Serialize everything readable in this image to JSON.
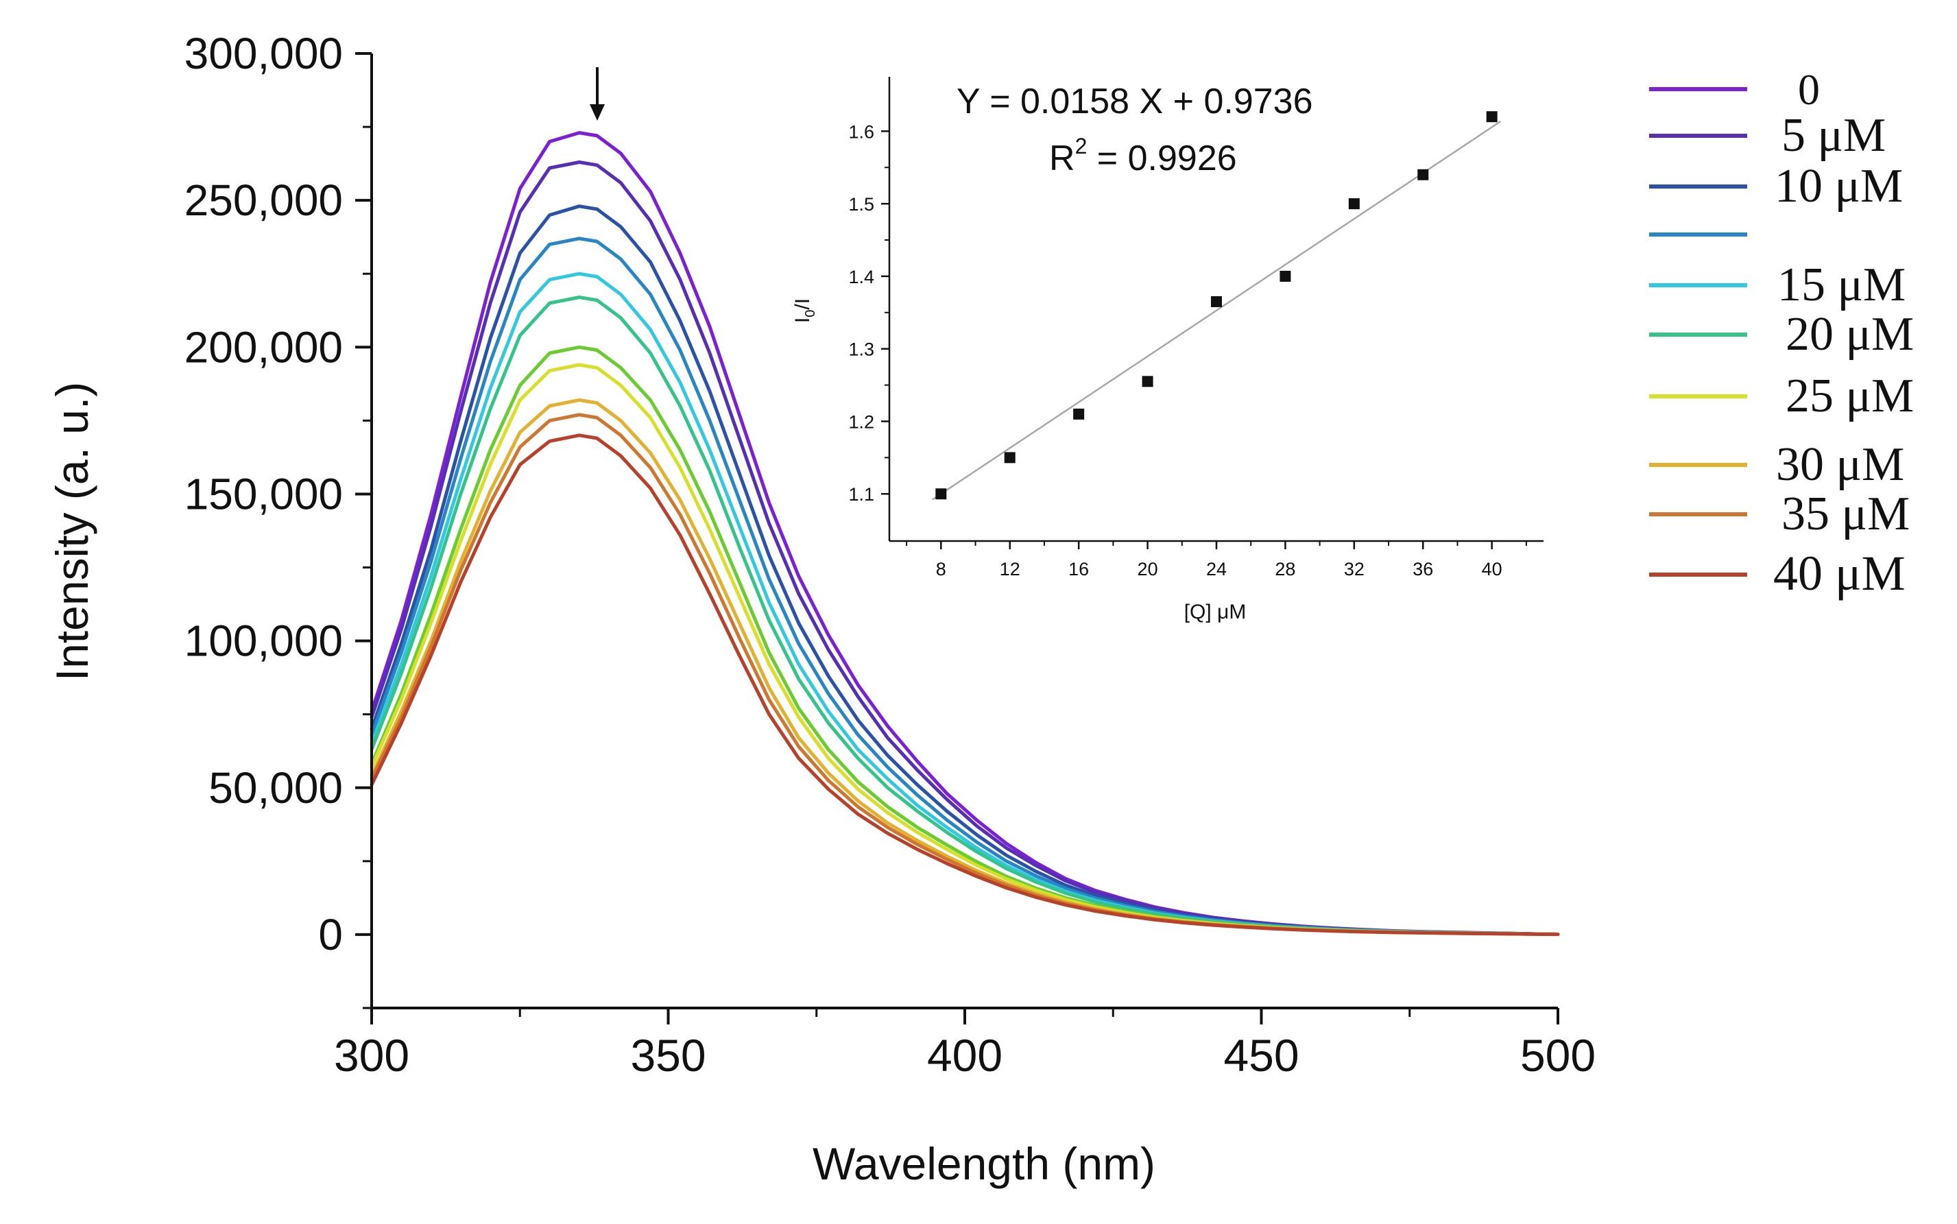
{
  "chart_data": [
    {
      "id": "main",
      "type": "line",
      "title": "",
      "xlabel": "Wavelength (nm)",
      "ylabel": "Intensity (a. u.)",
      "xlim": [
        300,
        500
      ],
      "ylim": [
        -25000,
        300000
      ],
      "xticks": [
        300,
        350,
        400,
        450,
        500
      ],
      "xtick_labels": [
        "300",
        "350",
        "400",
        "450",
        "500"
      ],
      "yticks": [
        0,
        50000,
        100000,
        150000,
        200000,
        250000,
        300000
      ],
      "ytick_labels": [
        "0",
        "50,000",
        "100,000",
        "150,000",
        "200,000",
        "250,000",
        "300,000"
      ],
      "annotation": "arrow at peak (~338 nm) pointing down: intensity decreases with quencher",
      "x": [
        300,
        305,
        310,
        315,
        320,
        325,
        330,
        335,
        338,
        342,
        347,
        352,
        357,
        362,
        367,
        372,
        377,
        382,
        387,
        392,
        397,
        402,
        407,
        412,
        417,
        422,
        427,
        432,
        437,
        442,
        447,
        452,
        457,
        462,
        467,
        472,
        477,
        482,
        487,
        492,
        497,
        500
      ],
      "series": [
        {
          "name": "0",
          "color": "#7d1fd3",
          "values": [
            76000,
            107000,
            143000,
            183000,
            222000,
            254000,
            270000,
            273000,
            272000,
            266000,
            253000,
            232000,
            207000,
            177000,
            147000,
            122000,
            102000,
            85000,
            71000,
            59000,
            48000,
            39000,
            31000,
            24500,
            19000,
            15000,
            12000,
            9400,
            7400,
            5800,
            4600,
            3600,
            2800,
            2200,
            1700,
            1300,
            1000,
            800,
            600,
            400,
            200,
            100
          ]
        },
        {
          "name": "5 μM",
          "color": "#5530b5",
          "values": [
            74000,
            104000,
            139000,
            178000,
            215000,
            246000,
            261000,
            263000,
            262000,
            256000,
            243000,
            223000,
            198000,
            169000,
            140000,
            116000,
            97000,
            81000,
            67000,
            56000,
            46000,
            37000,
            29500,
            23500,
            18300,
            14400,
            11500,
            9000,
            7100,
            5600,
            4400,
            3500,
            2700,
            2100,
            1600,
            1200,
            950,
            750,
            550,
            380,
            190,
            100
          ]
        },
        {
          "name": "10 μM",
          "color": "#2a52a8",
          "values": [
            70000,
            99000,
            131000,
            168000,
            203000,
            232000,
            245000,
            248000,
            247000,
            241000,
            229000,
            209000,
            185000,
            157000,
            129000,
            106000,
            88000,
            73000,
            61000,
            51000,
            42000,
            34000,
            27000,
            21500,
            16800,
            13300,
            10600,
            8300,
            6600,
            5200,
            4100,
            3200,
            2500,
            1950,
            1500,
            1150,
            900,
            700,
            520,
            360,
            180,
            100
          ]
        },
        {
          "name": "",
          "color": "#2886c4",
          "values": [
            68000,
            96000,
            127000,
            162000,
            195000,
            223000,
            235000,
            237000,
            236000,
            230000,
            218000,
            199000,
            175000,
            148000,
            121000,
            99000,
            82000,
            68000,
            57000,
            47500,
            39000,
            31500,
            25000,
            20000,
            15700,
            12400,
            9900,
            7800,
            6200,
            4900,
            3900,
            3000,
            2400,
            1850,
            1400,
            1100,
            850,
            650,
            490,
            340,
            170,
            100
          ]
        },
        {
          "name": "15 μM",
          "color": "#33c8e2",
          "values": [
            65000,
            92000,
            122000,
            155000,
            186000,
            212000,
            223000,
            225000,
            224000,
            218000,
            206000,
            188000,
            165000,
            139000,
            113000,
            92000,
            76000,
            63000,
            53000,
            44000,
            36500,
            29500,
            23500,
            18700,
            14700,
            11600,
            9300,
            7300,
            5800,
            4600,
            3650,
            2850,
            2250,
            1750,
            1350,
            1050,
            800,
            620,
            460,
            320,
            160,
            100
          ]
        },
        {
          "name": "20 μM",
          "color": "#34c48a",
          "values": [
            63000,
            89000,
            118000,
            150000,
            179000,
            204000,
            215000,
            217000,
            216000,
            210000,
            198000,
            180000,
            158000,
            132000,
            107000,
            87000,
            72000,
            60000,
            50000,
            42000,
            34800,
            28200,
            22500,
            17900,
            14100,
            11100,
            8900,
            7000,
            5550,
            4400,
            3500,
            2750,
            2150,
            1700,
            1300,
            1000,
            780,
            600,
            450,
            310,
            160,
            100
          ]
        },
        {
          "name": "",
          "color": "#69cc2f",
          "values": [
            58000,
            82000,
            109000,
            138000,
            165000,
            187000,
            198000,
            200000,
            199000,
            193000,
            182000,
            165000,
            144000,
            120000,
            96000,
            77000,
            63000,
            52000,
            43500,
            36500,
            30500,
            24800,
            19800,
            15800,
            12500,
            9900,
            7900,
            6200,
            4950,
            3950,
            3150,
            2450,
            1950,
            1500,
            1150,
            900,
            700,
            540,
            400,
            280,
            140,
            90
          ]
        },
        {
          "name": "25 μM",
          "color": "#d8df2a",
          "values": [
            57000,
            80000,
            106000,
            134000,
            160000,
            182000,
            192000,
            194000,
            193000,
            187000,
            176000,
            159000,
            138000,
            115000,
            92000,
            74000,
            60000,
            49500,
            41500,
            34800,
            29000,
            23600,
            18900,
            15100,
            11900,
            9400,
            7500,
            5900,
            4700,
            3750,
            3000,
            2350,
            1850,
            1450,
            1100,
            860,
            670,
            520,
            390,
            270,
            140,
            90
          ]
        },
        {
          "name": "30 μM",
          "color": "#e3b02f",
          "values": [
            54000,
            76000,
            100000,
            127000,
            151000,
            171000,
            180000,
            182000,
            181000,
            175000,
            164000,
            148000,
            128000,
            106000,
            84000,
            67000,
            55000,
            45500,
            38000,
            32000,
            26700,
            21800,
            17500,
            14000,
            11100,
            8800,
            7000,
            5500,
            4400,
            3500,
            2800,
            2200,
            1750,
            1350,
            1050,
            820,
            640,
            500,
            370,
            260,
            130,
            90
          ]
        },
        {
          "name": "35 μM",
          "color": "#cf7630",
          "values": [
            53000,
            74000,
            98000,
            124000,
            147000,
            166000,
            175000,
            177000,
            176000,
            170000,
            159000,
            143000,
            123000,
            101000,
            80000,
            64000,
            52500,
            43500,
            36500,
            30700,
            25600,
            20900,
            16800,
            13400,
            10600,
            8400,
            6700,
            5300,
            4200,
            3350,
            2700,
            2100,
            1650,
            1300,
            1000,
            780,
            610,
            480,
            360,
            250,
            130,
            90
          ]
        },
        {
          "name": "40 μM",
          "color": "#b8412b",
          "values": [
            51000,
            72000,
            95000,
            120000,
            142000,
            160000,
            168000,
            170000,
            169000,
            163000,
            152000,
            136000,
            116000,
            95000,
            75000,
            60000,
            49500,
            41000,
            34500,
            29000,
            24200,
            19800,
            15900,
            12700,
            10100,
            8000,
            6400,
            5050,
            4000,
            3200,
            2550,
            2000,
            1580,
            1230,
            950,
            740,
            580,
            450,
            340,
            240,
            120,
            80
          ]
        }
      ]
    },
    {
      "id": "inset",
      "type": "scatter",
      "title": "",
      "xlabel": "[Q] μM",
      "ylabel": "I0/I",
      "ylabel_main": "I",
      "ylabel_sub": "0",
      "ylabel_tail": "/I",
      "xlim": [
        5,
        43
      ],
      "ylim": [
        1.035,
        1.675
      ],
      "xticks": [
        8,
        12,
        16,
        20,
        24,
        28,
        32,
        36,
        40
      ],
      "xtick_labels": [
        "8",
        "12",
        "16",
        "20",
        "24",
        "28",
        "32",
        "36",
        "40"
      ],
      "yticks": [
        1.1,
        1.2,
        1.3,
        1.4,
        1.5,
        1.6
      ],
      "ytick_labels": [
        "1.1",
        "1.2",
        "1.3",
        "1.4",
        "1.5",
        "1.6"
      ],
      "x": [
        8,
        12,
        16,
        20,
        24,
        28,
        32,
        36,
        40
      ],
      "y": [
        1.1,
        1.15,
        1.21,
        1.255,
        1.365,
        1.4,
        1.5,
        1.54,
        1.62
      ],
      "fit": {
        "slope": 0.0158,
        "intercept": 0.9736,
        "x_range": [
          7.5,
          40
        ]
      },
      "equation": "Y = 0.0158 X + 0.9736",
      "r2_prefix": "R",
      "r2_sup": "2",
      "r2_suffix": " = 0.9926"
    }
  ],
  "legend": {
    "placement": "right",
    "entries": [
      {
        "label": "0",
        "color": "#7d1fd3"
      },
      {
        "label": "5 μM",
        "color": "#5530b5"
      },
      {
        "label": "10 μM",
        "color": "#2a52a8"
      },
      {
        "label": "",
        "color": "#2886c4"
      },
      {
        "label": "15 μM",
        "color": "#33c8e2"
      },
      {
        "label": "20 μM",
        "color": "#34c48a"
      },
      {
        "label": "25 μM",
        "color": "#d8df2a"
      },
      {
        "label": "30 μM",
        "color": "#e3b02f"
      },
      {
        "label": "35 μM",
        "color": "#cf7630"
      },
      {
        "label": "40 μM",
        "color": "#b8412b"
      }
    ]
  },
  "colors": {
    "axis": "#111111",
    "fit_line": "#a8a8a8",
    "marker": "#111111",
    "background": "#ffffff"
  }
}
